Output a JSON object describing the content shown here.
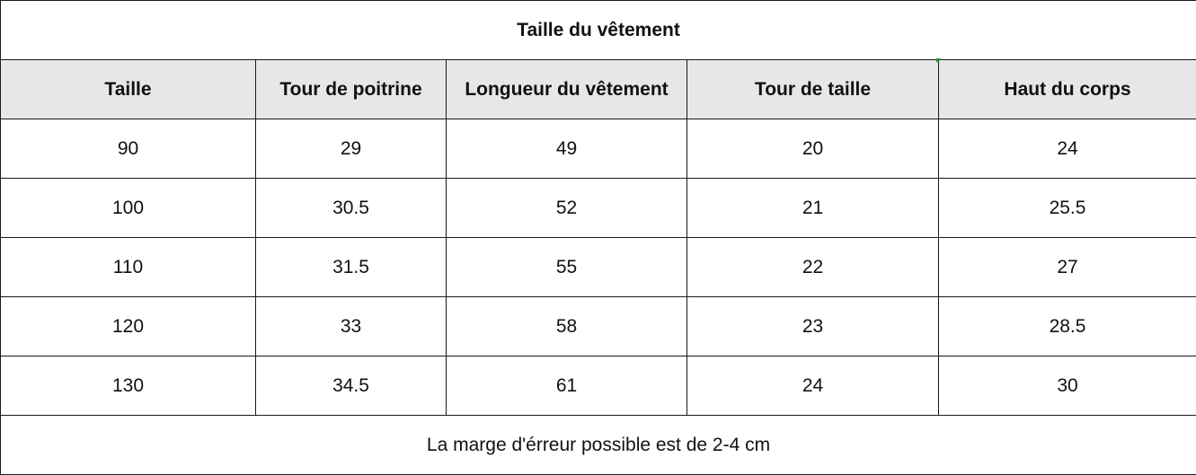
{
  "table": {
    "title": "Taille du vêtement",
    "headers": [
      "Taille",
      "Tour de poitrine",
      "Longueur du vêtement",
      "Tour de taille",
      "Haut du corps"
    ],
    "rows": [
      [
        "90",
        "29",
        "49",
        "20",
        "24"
      ],
      [
        "100",
        "30.5",
        "52",
        "21",
        "25.5"
      ],
      [
        "110",
        "31.5",
        "55",
        "22",
        "27"
      ],
      [
        "120",
        "33",
        "58",
        "23",
        "28.5"
      ],
      [
        "130",
        "34.5",
        "61",
        "24",
        "30"
      ]
    ],
    "note": "La marge d'érreur possible est de 2-4 cm"
  },
  "colors": {
    "header_background": "#e7e7e7",
    "border": "#1a1a1a",
    "cell_marker": "#1a9a2a"
  }
}
